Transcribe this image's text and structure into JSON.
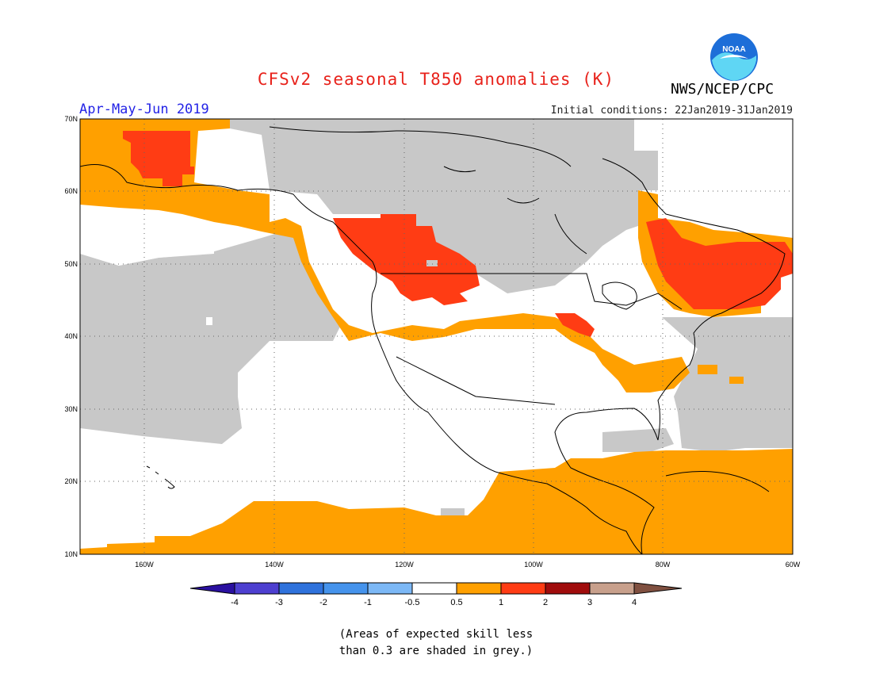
{
  "header": {
    "title": "CFSv2 seasonal T850 anomalies (K)",
    "period": "Apr-May-Jun 2019",
    "initial_conditions": "Initial conditions: 22Jan2019-31Jan2019",
    "agency": "NWS/NCEP/CPC",
    "logo_text": "NOAA"
  },
  "map": {
    "lat_labels": [
      "70N",
      "60N",
      "50N",
      "40N",
      "30N",
      "20N",
      "10N"
    ],
    "lon_labels": [
      "160W",
      "140W",
      "120W",
      "100W",
      "80W",
      "60W"
    ],
    "colors": {
      "grey": "#c8c8c8",
      "orange": "#ffa000",
      "red": "#ff3c14",
      "white": "#ffffff",
      "land_outline": "#000000"
    }
  },
  "colorbar": {
    "labels": [
      "-4",
      "-3",
      "-2",
      "-1",
      "-0.5",
      "0.5",
      "1",
      "2",
      "3",
      "4"
    ],
    "colors": [
      "#2a10a0",
      "#4d3fd0",
      "#2f72dc",
      "#4593ec",
      "#7cb8f6",
      "#ffffff",
      "#ffa000",
      "#ff3c14",
      "#a00c0c",
      "#c8a08c",
      "#805040"
    ]
  },
  "note": {
    "line1": "(Areas of expected skill less",
    "line2": "than 0.3 are shaded in grey.)"
  }
}
